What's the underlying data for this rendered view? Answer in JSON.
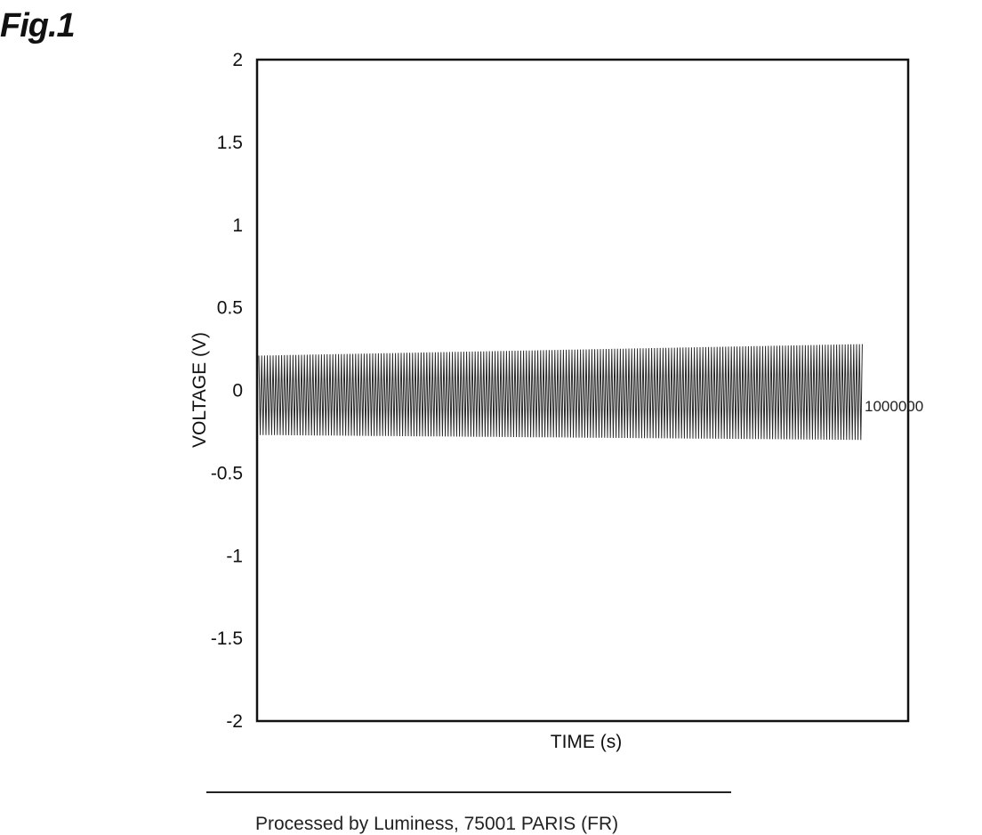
{
  "figure": {
    "label": "Fig.1"
  },
  "footer": {
    "text": "Processed by Luminess, 75001 PARIS (FR)"
  },
  "chart_data": {
    "type": "line",
    "title": "",
    "xlabel": "TIME (s)",
    "ylabel": "VOLTAGE (V)",
    "ylim": [
      -2,
      2
    ],
    "yticks": [
      "2",
      "1.5",
      "1",
      "0.5",
      "0",
      "-0.5",
      "-1",
      "-1.5",
      "-2"
    ],
    "grid": false,
    "series": [
      {
        "name": "1000000",
        "description_values": {
          "amplitude_start": 0.24,
          "amplitude_end": 0.29,
          "offset_start": -0.03,
          "offset_end": -0.01
        }
      }
    ]
  }
}
